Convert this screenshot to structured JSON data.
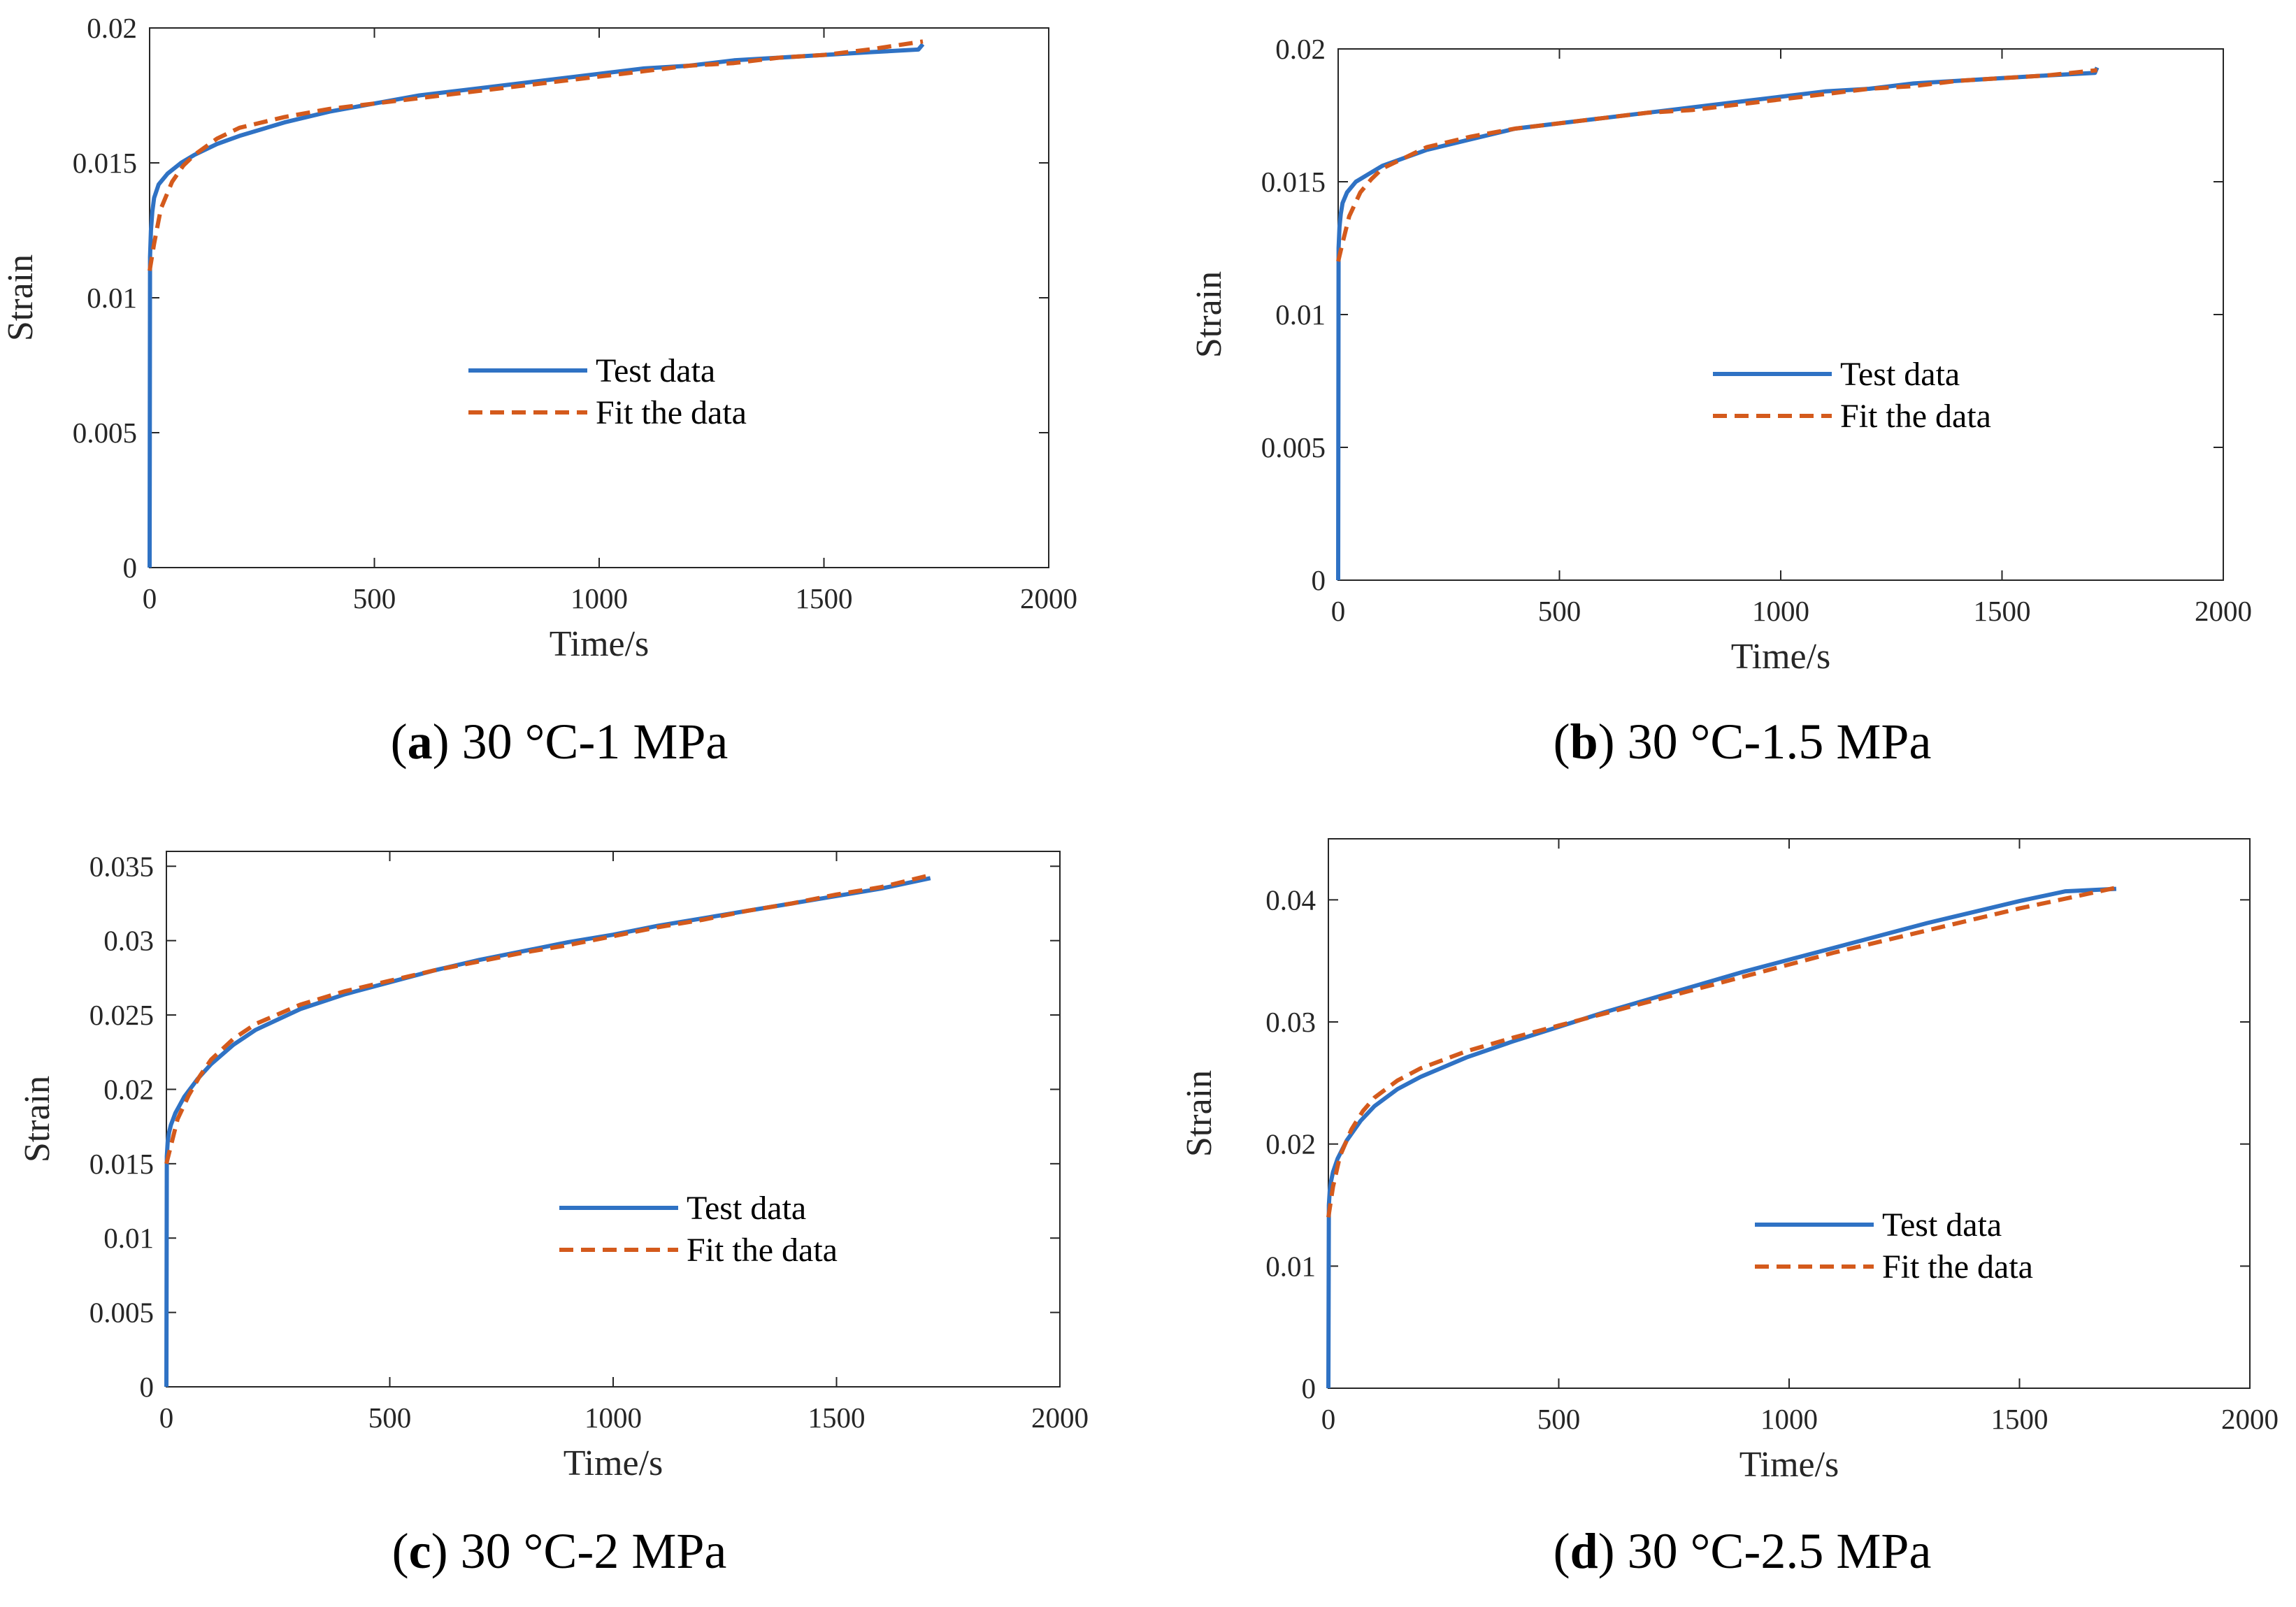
{
  "colors": {
    "test": "#2f72c4",
    "fit": "#d45a1c",
    "axis": "#262626"
  },
  "legend": {
    "test_label": "Test data",
    "fit_label": "Fit the data"
  },
  "chart_data": [
    {
      "id": "a",
      "type": "line",
      "caption_letter": "a",
      "caption_text": " 30 °C-1 MPa",
      "xlabel": "Time/s",
      "ylabel": "Strain",
      "xlim": [
        0,
        2000
      ],
      "ylim": [
        0,
        0.02
      ],
      "xticks": [
        0,
        500,
        1000,
        1500,
        2000
      ],
      "xtick_labels": [
        "0",
        "500",
        "1000",
        "1500",
        "2000"
      ],
      "yticks": [
        0,
        0.005,
        0.01,
        0.015,
        0.02
      ],
      "ytick_labels": [
        "0",
        "0.005",
        "0.01",
        "0.015",
        "0.02"
      ],
      "legend_position": "center",
      "series": [
        {
          "name": "Test data",
          "style": "solid",
          "x": [
            0,
            1,
            3,
            6,
            10,
            20,
            40,
            70,
            100,
            150,
            200,
            300,
            400,
            500,
            600,
            700,
            800,
            900,
            1000,
            1100,
            1200,
            1300,
            1400,
            1500,
            1600,
            1710,
            1720
          ],
          "y": [
            0,
            0.0115,
            0.0125,
            0.0132,
            0.0137,
            0.0142,
            0.0146,
            0.015,
            0.0153,
            0.0157,
            0.016,
            0.0165,
            0.0169,
            0.0172,
            0.0175,
            0.0177,
            0.0179,
            0.0181,
            0.0183,
            0.0185,
            0.0186,
            0.0188,
            0.0189,
            0.019,
            0.0191,
            0.0192,
            0.0194
          ]
        },
        {
          "name": "Fit the data",
          "style": "dashed",
          "x": [
            0,
            10,
            25,
            50,
            75,
            100,
            150,
            200,
            300,
            400,
            500,
            600,
            700,
            800,
            900,
            1000,
            1100,
            1200,
            1300,
            1400,
            1500,
            1600,
            1720
          ],
          "y": [
            0.011,
            0.012,
            0.0133,
            0.0143,
            0.0149,
            0.0153,
            0.0159,
            0.0163,
            0.0167,
            0.017,
            0.0172,
            0.0174,
            0.0176,
            0.0178,
            0.018,
            0.0182,
            0.0184,
            0.0186,
            0.0187,
            0.0189,
            0.019,
            0.0192,
            0.0195
          ]
        }
      ]
    },
    {
      "id": "b",
      "type": "line",
      "caption_letter": "b",
      "caption_text": " 30 °C-1.5 MPa",
      "xlabel": "Time/s",
      "ylabel": "Strain",
      "xlim": [
        0,
        2000
      ],
      "ylim": [
        0,
        0.02
      ],
      "xticks": [
        0,
        500,
        1000,
        1500,
        2000
      ],
      "xtick_labels": [
        "0",
        "500",
        "1000",
        "1500",
        "2000"
      ],
      "yticks": [
        0,
        0.005,
        0.01,
        0.015,
        0.02
      ],
      "ytick_labels": [
        "0",
        "0.005",
        "0.01",
        "0.015",
        "0.02"
      ],
      "legend_position": "center",
      "series": [
        {
          "name": "Test data",
          "style": "solid",
          "x": [
            0,
            1,
            3,
            6,
            10,
            20,
            40,
            70,
            100,
            150,
            200,
            300,
            400,
            500,
            600,
            700,
            800,
            900,
            1000,
            1100,
            1200,
            1300,
            1400,
            1500,
            1600,
            1710,
            1715
          ],
          "y": [
            0,
            0.0125,
            0.0133,
            0.0138,
            0.0142,
            0.0146,
            0.015,
            0.0153,
            0.0156,
            0.0159,
            0.0162,
            0.0166,
            0.017,
            0.0172,
            0.0174,
            0.0176,
            0.0178,
            0.018,
            0.0182,
            0.0184,
            0.0185,
            0.0187,
            0.0188,
            0.0189,
            0.019,
            0.0191,
            0.0193
          ]
        },
        {
          "name": "Fit the data",
          "style": "dashed",
          "x": [
            0,
            10,
            25,
            50,
            75,
            100,
            150,
            200,
            300,
            400,
            500,
            600,
            700,
            800,
            900,
            1000,
            1100,
            1200,
            1300,
            1400,
            1500,
            1600,
            1715
          ],
          "y": [
            0.012,
            0.0127,
            0.0137,
            0.0146,
            0.0151,
            0.0155,
            0.0159,
            0.0163,
            0.0167,
            0.017,
            0.0172,
            0.0174,
            0.0176,
            0.0177,
            0.0179,
            0.0181,
            0.0183,
            0.0185,
            0.0186,
            0.0188,
            0.0189,
            0.019,
            0.0192
          ]
        }
      ]
    },
    {
      "id": "c",
      "type": "line",
      "caption_letter": "c",
      "caption_text": " 30 °C-2 MPa",
      "xlabel": "Time/s",
      "ylabel": "Strain",
      "xlim": [
        0,
        2000
      ],
      "ylim": [
        0,
        0.036
      ],
      "xticks": [
        0,
        500,
        1000,
        1500,
        2000
      ],
      "xtick_labels": [
        "0",
        "500",
        "1000",
        "1500",
        "2000"
      ],
      "yticks": [
        0,
        0.005,
        0.01,
        0.015,
        0.02,
        0.025,
        0.03,
        0.035
      ],
      "ytick_labels": [
        "0",
        "0.005",
        "0.01",
        "0.015",
        "0.02",
        "0.025",
        "0.03",
        "0.035"
      ],
      "legend_position": "lower-right",
      "series": [
        {
          "name": "Test data",
          "style": "solid",
          "x": [
            0,
            1,
            3,
            6,
            10,
            20,
            40,
            70,
            100,
            150,
            200,
            300,
            400,
            500,
            600,
            700,
            800,
            900,
            1000,
            1100,
            1200,
            1300,
            1400,
            1500,
            1600,
            1710
          ],
          "y": [
            0,
            0.0155,
            0.0165,
            0.0171,
            0.0176,
            0.0184,
            0.0195,
            0.0207,
            0.0217,
            0.023,
            0.024,
            0.0254,
            0.0264,
            0.0272,
            0.028,
            0.0287,
            0.0293,
            0.0299,
            0.0304,
            0.031,
            0.0315,
            0.032,
            0.0325,
            0.033,
            0.0335,
            0.0342
          ]
        },
        {
          "name": "Fit the data",
          "style": "dashed",
          "x": [
            0,
            10,
            25,
            50,
            75,
            100,
            150,
            200,
            300,
            400,
            500,
            600,
            700,
            800,
            900,
            1000,
            1100,
            1200,
            1300,
            1400,
            1500,
            1600,
            1710
          ],
          "y": [
            0.015,
            0.0162,
            0.018,
            0.0196,
            0.0209,
            0.022,
            0.0234,
            0.0244,
            0.0257,
            0.0266,
            0.0273,
            0.028,
            0.0286,
            0.0292,
            0.0297,
            0.0303,
            0.0309,
            0.0314,
            0.032,
            0.0325,
            0.0331,
            0.0336,
            0.0344
          ]
        }
      ]
    },
    {
      "id": "d",
      "type": "line",
      "caption_letter": "d",
      "caption_text": " 30 °C-2.5 MPa",
      "xlabel": "Time/s",
      "ylabel": "Strain",
      "xlim": [
        0,
        2000
      ],
      "ylim": [
        0,
        0.045
      ],
      "xticks": [
        0,
        500,
        1000,
        1500,
        2000
      ],
      "xtick_labels": [
        "0",
        "500",
        "1000",
        "1500",
        "2000"
      ],
      "yticks": [
        0,
        0.01,
        0.02,
        0.03,
        0.04
      ],
      "ytick_labels": [
        "0",
        "0.01",
        "0.02",
        "0.03",
        "0.04"
      ],
      "legend_position": "lower-right",
      "series": [
        {
          "name": "Test data",
          "style": "solid",
          "x": [
            0,
            1,
            3,
            6,
            10,
            20,
            40,
            70,
            100,
            150,
            200,
            300,
            400,
            500,
            600,
            700,
            800,
            900,
            1000,
            1100,
            1200,
            1300,
            1400,
            1500,
            1600,
            1710
          ],
          "y": [
            0,
            0.015,
            0.0162,
            0.017,
            0.0177,
            0.0188,
            0.0203,
            0.0219,
            0.0231,
            0.0245,
            0.0255,
            0.0271,
            0.0284,
            0.0296,
            0.0308,
            0.0319,
            0.033,
            0.0341,
            0.0351,
            0.0361,
            0.0371,
            0.0381,
            0.039,
            0.0399,
            0.0407,
            0.0409
          ]
        },
        {
          "name": "Fit the data",
          "style": "dashed",
          "x": [
            0,
            10,
            25,
            50,
            75,
            100,
            150,
            200,
            300,
            400,
            500,
            600,
            700,
            800,
            900,
            1000,
            1100,
            1200,
            1300,
            1400,
            1500,
            1600,
            1710
          ],
          "y": [
            0.014,
            0.0165,
            0.019,
            0.0212,
            0.0227,
            0.0238,
            0.0252,
            0.0262,
            0.0276,
            0.0287,
            0.0297,
            0.0307,
            0.0317,
            0.0327,
            0.0337,
            0.0347,
            0.0357,
            0.0366,
            0.0375,
            0.0384,
            0.0393,
            0.0401,
            0.041
          ]
        }
      ]
    }
  ]
}
